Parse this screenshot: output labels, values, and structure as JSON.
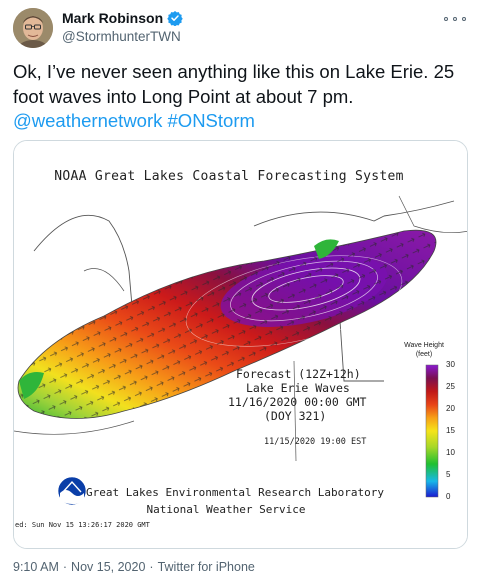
{
  "author": {
    "name": "Mark Robinson",
    "handle": "@StormhunterTWN",
    "verified": true
  },
  "tweet": {
    "text_main": "Ok, I’ve never seen anything like this on Lake Erie. 25 foot waves into Long Point at about 7 pm.",
    "mention": "@weathernetwork",
    "hashtag": "#ONStorm"
  },
  "image": {
    "title": "NOAA Great Lakes Coastal Forecasting System",
    "forecast_line1": "Forecast (12Z+12h)",
    "forecast_line2": "Lake Erie Waves",
    "forecast_line3": "11/16/2020 00:00 GMT",
    "forecast_line4": "(DOY 321)",
    "local_time": "11/15/2020 19:00 EST",
    "legend_title": "Wave Height (feet)",
    "legend_ticks": [
      "30",
      "25",
      "20",
      "15",
      "10",
      "5",
      "0"
    ],
    "lab_line1": "Great Lakes Environmental Research Laboratory",
    "lab_line2": "National Weather Service",
    "generated": "ed: Sun Nov 15 13:26:17 2020 GMT",
    "logo_text": "NOAA"
  },
  "meta": {
    "time": "9:10 AM",
    "separator": "·",
    "date": "Nov 15, 2020",
    "client": "Twitter for iPhone"
  },
  "colors": {
    "link": "#1d9bf0",
    "secondary_text": "#536471",
    "verified": "#1d9bf0"
  }
}
